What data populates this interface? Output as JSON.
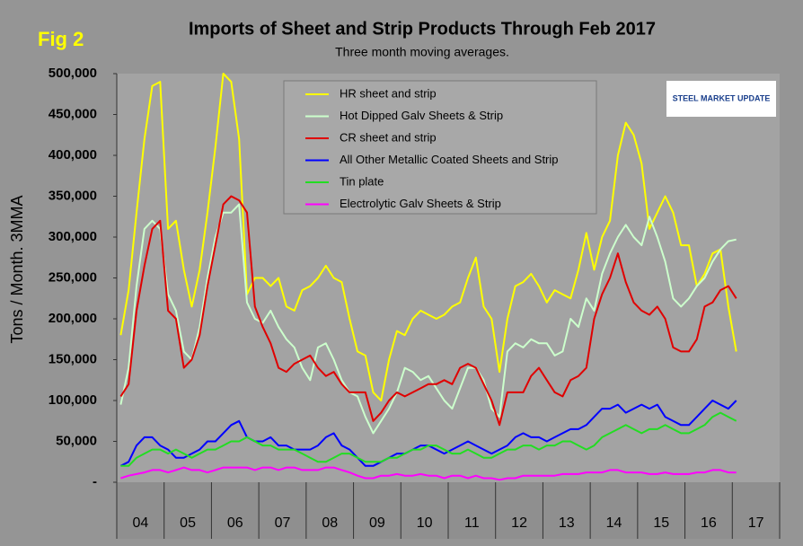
{
  "chart_data": {
    "type": "line",
    "title": "Imports of Sheet and Strip Products Through Feb 2017",
    "subtitle": "Three month moving averages.",
    "annotation": "Fig 2",
    "logo": "STEEL MARKET UPDATE",
    "y_label": "Tons / Month. 3MMA",
    "grid": false,
    "categories": [
      "04",
      null,
      null,
      null,
      null,
      null,
      "05",
      null,
      null,
      null,
      null,
      null,
      "06",
      null,
      null,
      null,
      null,
      null,
      "07",
      null,
      null,
      null,
      null,
      null,
      "08",
      null,
      null,
      null,
      null,
      null,
      "09",
      null,
      null,
      null,
      null,
      null,
      "10",
      null,
      null,
      null,
      null,
      null,
      "11",
      null,
      null,
      null,
      null,
      null,
      "12",
      null,
      null,
      null,
      null,
      null,
      "13",
      null,
      null,
      null,
      null,
      null,
      "14",
      null,
      null,
      null,
      null,
      null,
      "15",
      null,
      null,
      null,
      null,
      null,
      "16",
      null,
      null,
      null,
      null,
      null,
      "17"
    ],
    "ylim": [
      0,
      500000
    ],
    "yticks": [
      {
        "value": 0,
        "label": "-"
      },
      {
        "value": 50000,
        "label": "50,000"
      },
      {
        "value": 100000,
        "label": "100,000"
      },
      {
        "value": 150000,
        "label": "150,000"
      },
      {
        "value": 200000,
        "label": "200,000"
      },
      {
        "value": 250000,
        "label": "250,000"
      },
      {
        "value": 300000,
        "label": "300,000"
      },
      {
        "value": 350000,
        "label": "350,000"
      },
      {
        "value": 400000,
        "label": "400,000"
      },
      {
        "value": 450000,
        "label": "450,000"
      },
      {
        "value": 500000,
        "label": "500,000"
      }
    ],
    "series": [
      {
        "name": "HR sheet and strip",
        "color": "#ffff00",
        "values": [
          180000,
          235000,
          330000,
          420000,
          485000,
          490000,
          310000,
          320000,
          260000,
          215000,
          260000,
          330000,
          410000,
          500000,
          490000,
          420000,
          230000,
          250000,
          250000,
          240000,
          250000,
          215000,
          210000,
          235000,
          240000,
          250000,
          265000,
          250000,
          245000,
          200000,
          160000,
          155000,
          110000,
          100000,
          150000,
          185000,
          180000,
          200000,
          210000,
          205000,
          200000,
          205000,
          215000,
          220000,
          250000,
          275000,
          215000,
          200000,
          135000,
          200000,
          240000,
          245000,
          255000,
          240000,
          220000,
          235000,
          230000,
          225000,
          260000,
          305000,
          260000,
          300000,
          320000,
          400000,
          440000,
          425000,
          390000,
          310000,
          330000,
          350000,
          330000,
          290000,
          290000,
          240000,
          255000,
          280000,
          285000,
          215000,
          160000
        ]
      },
      {
        "name": "Hot Dipped Galv Sheets & Strip",
        "color": "#ccffcc",
        "values": [
          95000,
          140000,
          240000,
          310000,
          320000,
          310000,
          230000,
          210000,
          160000,
          150000,
          190000,
          250000,
          300000,
          330000,
          330000,
          340000,
          220000,
          200000,
          195000,
          210000,
          190000,
          175000,
          165000,
          140000,
          125000,
          165000,
          170000,
          150000,
          125000,
          110000,
          105000,
          80000,
          60000,
          75000,
          90000,
          110000,
          140000,
          135000,
          125000,
          130000,
          115000,
          100000,
          90000,
          115000,
          140000,
          140000,
          125000,
          90000,
          80000,
          160000,
          170000,
          165000,
          175000,
          170000,
          170000,
          155000,
          160000,
          200000,
          190000,
          225000,
          210000,
          255000,
          280000,
          300000,
          315000,
          300000,
          290000,
          325000,
          300000,
          270000,
          225000,
          215000,
          225000,
          240000,
          250000,
          270000,
          285000,
          295000,
          297000
        ]
      },
      {
        "name": "CR sheet and strip",
        "color": "#e00000",
        "values": [
          105000,
          120000,
          210000,
          265000,
          310000,
          320000,
          210000,
          200000,
          140000,
          150000,
          180000,
          240000,
          290000,
          340000,
          350000,
          345000,
          330000,
          215000,
          190000,
          170000,
          140000,
          135000,
          145000,
          150000,
          155000,
          140000,
          130000,
          135000,
          120000,
          110000,
          110000,
          110000,
          75000,
          85000,
          100000,
          110000,
          105000,
          110000,
          115000,
          120000,
          120000,
          125000,
          120000,
          140000,
          145000,
          140000,
          120000,
          100000,
          70000,
          110000,
          110000,
          110000,
          130000,
          140000,
          125000,
          110000,
          105000,
          125000,
          130000,
          140000,
          200000,
          230000,
          250000,
          280000,
          245000,
          220000,
          210000,
          205000,
          215000,
          200000,
          165000,
          160000,
          160000,
          175000,
          215000,
          220000,
          235000,
          240000,
          225000
        ]
      },
      {
        "name": "All Other Metallic Coated Sheets and Strip",
        "color": "#0000ff",
        "values": [
          20000,
          25000,
          45000,
          55000,
          55000,
          45000,
          40000,
          30000,
          30000,
          35000,
          40000,
          50000,
          50000,
          60000,
          70000,
          75000,
          55000,
          50000,
          50000,
          55000,
          45000,
          45000,
          40000,
          40000,
          40000,
          45000,
          55000,
          60000,
          45000,
          40000,
          30000,
          20000,
          20000,
          25000,
          30000,
          35000,
          35000,
          40000,
          45000,
          45000,
          40000,
          35000,
          40000,
          45000,
          50000,
          45000,
          40000,
          35000,
          40000,
          45000,
          55000,
          60000,
          55000,
          55000,
          50000,
          55000,
          60000,
          65000,
          65000,
          70000,
          80000,
          90000,
          90000,
          95000,
          85000,
          90000,
          95000,
          90000,
          95000,
          80000,
          75000,
          70000,
          70000,
          80000,
          90000,
          100000,
          95000,
          90000,
          100000
        ]
      },
      {
        "name": "Tin plate",
        "color": "#22dd22",
        "values": [
          20000,
          20000,
          30000,
          35000,
          40000,
          40000,
          35000,
          40000,
          35000,
          30000,
          35000,
          40000,
          40000,
          45000,
          50000,
          50000,
          55000,
          50000,
          45000,
          45000,
          40000,
          40000,
          40000,
          35000,
          30000,
          25000,
          25000,
          30000,
          35000,
          35000,
          30000,
          25000,
          25000,
          25000,
          30000,
          30000,
          35000,
          40000,
          40000,
          45000,
          45000,
          40000,
          35000,
          35000,
          40000,
          35000,
          30000,
          30000,
          35000,
          40000,
          40000,
          45000,
          45000,
          40000,
          45000,
          45000,
          50000,
          50000,
          45000,
          40000,
          45000,
          55000,
          60000,
          65000,
          70000,
          65000,
          60000,
          65000,
          65000,
          70000,
          65000,
          60000,
          60000,
          65000,
          70000,
          80000,
          85000,
          80000,
          75000
        ]
      },
      {
        "name": "Electrolytic Galv Sheets & Strip",
        "color": "#ff00ff",
        "values": [
          5000,
          8000,
          10000,
          12000,
          15000,
          15000,
          12000,
          15000,
          18000,
          15000,
          15000,
          12000,
          15000,
          18000,
          18000,
          18000,
          18000,
          15000,
          18000,
          18000,
          15000,
          18000,
          18000,
          15000,
          15000,
          15000,
          18000,
          18000,
          15000,
          12000,
          8000,
          5000,
          5000,
          8000,
          8000,
          10000,
          8000,
          8000,
          10000,
          8000,
          8000,
          5000,
          8000,
          8000,
          5000,
          8000,
          5000,
          5000,
          3000,
          5000,
          5000,
          8000,
          8000,
          8000,
          8000,
          8000,
          10000,
          10000,
          10000,
          12000,
          12000,
          12000,
          15000,
          15000,
          12000,
          12000,
          12000,
          10000,
          10000,
          12000,
          10000,
          10000,
          10000,
          12000,
          12000,
          15000,
          15000,
          12000,
          12000
        ]
      }
    ]
  }
}
